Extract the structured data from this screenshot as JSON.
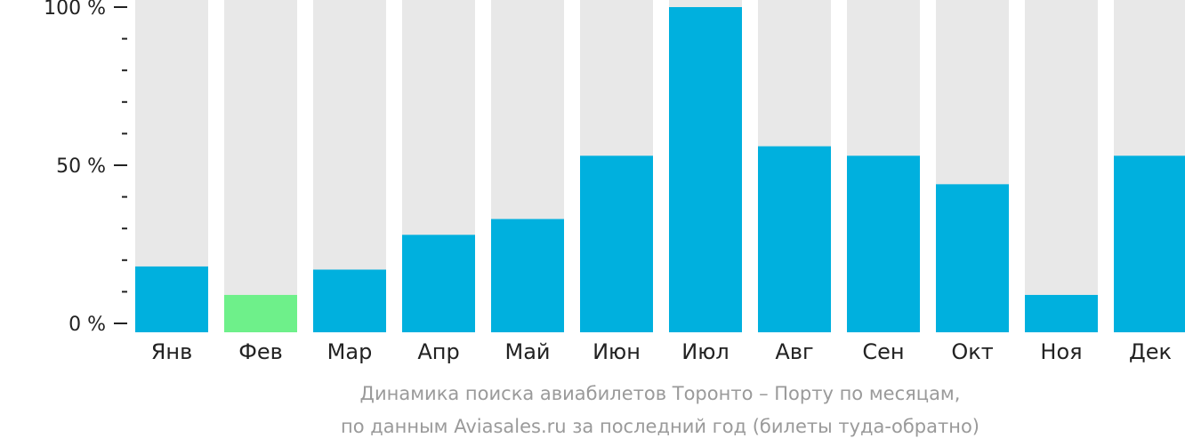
{
  "chart_data": {
    "type": "bar",
    "categories": [
      "Янв",
      "Фев",
      "Мар",
      "Апр",
      "Май",
      "Июн",
      "Июл",
      "Авг",
      "Сен",
      "Окт",
      "Ноя",
      "Дек"
    ],
    "values": [
      18,
      9,
      17,
      28,
      33,
      53,
      100,
      56,
      53,
      44,
      9,
      53
    ],
    "ylim": [
      0,
      100
    ],
    "y_ticks": [
      {
        "value": 0,
        "label": "0 %"
      },
      {
        "value": 50,
        "label": "50 %"
      },
      {
        "value": 100,
        "label": "100 %"
      }
    ],
    "y_minor_ticks": [
      10,
      20,
      30,
      40,
      60,
      70,
      80,
      90
    ],
    "colors": {
      "bar": "#00b0de",
      "bar_highlight": "#6ef08a",
      "background_bar": "#e8e8e8",
      "axis": "#222222"
    },
    "highlight_index": 1,
    "caption": [
      "Динамика поиска авиабилетов Торонто – Порту по месяцам,",
      "по данным Aviasales.ru за последний год (билеты туда-обратно)"
    ]
  }
}
